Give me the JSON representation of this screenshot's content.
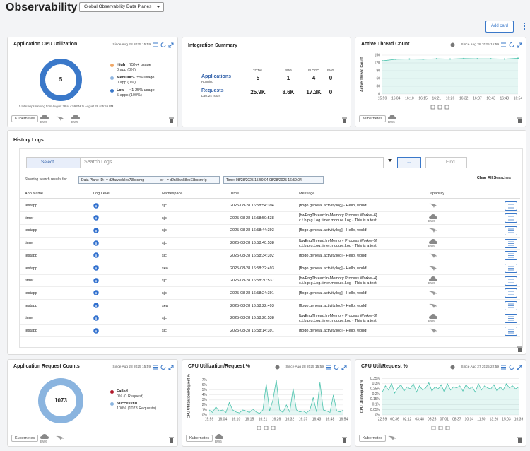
{
  "header": {
    "title": "Observability",
    "scope": "Global Observability Data Planes",
    "add_card": "Add card"
  },
  "cpu_card": {
    "title": "Application CPU Utilization",
    "since": "Since Aug 28 2025 15:59",
    "chart": {
      "type": "pie",
      "center": 5,
      "values": [
        0,
        0,
        5
      ],
      "colors": [
        "#f0a868",
        "#8fb5e0",
        "#3a78c9"
      ],
      "legend": [
        {
          "name": "High",
          "range": "75%+ usage",
          "detail": "0 app (0%)"
        },
        {
          "name": "Medium",
          "range": "25-75% usage",
          "detail": "0 app (0%)"
        },
        {
          "name": "Low",
          "range": "~1-25% usage",
          "detail": "5 apps (100%)"
        }
      ]
    },
    "note": "5 total apps running from August 28 at 4:59 PM to August 28 at 5:59 PM",
    "tag": "Kubernetes",
    "capabilities": [
      "BW6",
      "BW5"
    ],
    "flogo": true
  },
  "summary": {
    "title": "Integration Summary",
    "columns": [
      "TOTAL",
      "BW6",
      "FLOGO",
      "BW5"
    ],
    "rows": [
      {
        "label": "Applications",
        "sub": "Running",
        "cells": [
          5,
          1,
          4,
          0
        ]
      },
      {
        "label": "Requests",
        "sub": "Last 24 hours",
        "cells": [
          "25.9K",
          "8.6K",
          "17.3K",
          0
        ]
      }
    ]
  },
  "threads": {
    "title": "Active Thread Count",
    "since": "Since Aug 28 2025 15:59",
    "tag": "Kubernetes",
    "capabilities": [
      "BW6"
    ],
    "chart": {
      "type": "line",
      "y_label": "Active Thread Count",
      "categories": [
        "15:59",
        "16:04",
        "16:10",
        "16:15",
        "16:21",
        "16:26",
        "16:32",
        "16:37",
        "16:43",
        "16:48",
        "16:54"
      ],
      "values": [
        128,
        134,
        135,
        134,
        136,
        135,
        137,
        136,
        136,
        135,
        138
      ],
      "ylim": [
        0,
        150
      ],
      "yticks": [
        0,
        30,
        60,
        90,
        120,
        150
      ],
      "color": "#4cc3ad",
      "grid": true,
      "markers": true
    }
  },
  "logs": {
    "title": "History Logs",
    "select": "Select",
    "search_placeholder": "Search Logs",
    "more": "...",
    "find": "Find",
    "showing": "Showing search results for:",
    "dataplane_label": "Data Plane ID:",
    "dataplane_values": [
      "= d2fawsskilec73bcclmg",
      "= d2nk8vsk8ec73bccm4g"
    ],
    "or": "or",
    "time": "Time: 08/28/2025 15:59:04,08/28/2025 16:59:04",
    "clear": "Clear All Searches",
    "columns": [
      "App Name",
      "Log Level",
      "Namespace",
      "Time",
      "Message",
      "Capability"
    ],
    "rows": [
      {
        "app": "testapp",
        "namespace": "sjc",
        "time": "2025-08-28 16:58:54:394",
        "message": "[flogo.general.activity.log] - Hello, world!"
      },
      {
        "app": "timer",
        "namespace": "sjc",
        "time": "2025-08-28 16:58:50:538",
        "message": "[bwEngThread:In-Memory Process Worker-6]\nc.t.b.p.g.Log.timer.module.Log - This is a test.",
        "capability": "BW6"
      },
      {
        "app": "testapp",
        "namespace": "sjc",
        "time": "2025-08-28 16:58:44:393",
        "message": "[flogo.general.activity.log] - Hello, world!"
      },
      {
        "app": "timer",
        "namespace": "sjc",
        "time": "2025-08-28 16:58:40:538",
        "message": "[bwEngThread:In-Memory Process Worker-5]\nc.t.b.p.g.Log.timer.module.Log - This is a test.",
        "capability": "BW6"
      },
      {
        "app": "testapp",
        "namespace": "sjc",
        "time": "2025-08-28 16:58:34:392",
        "message": "[flogo.general.activity.log] - Hello, world!"
      },
      {
        "app": "testapp",
        "namespace": "sea",
        "time": "2025-08-28 16:58:32:493",
        "message": "[flogo.general.activity.log] - Hello, world!"
      },
      {
        "app": "timer",
        "namespace": "sjc",
        "time": "2025-08-28 16:58:30:537",
        "message": "[bwEngThread:In-Memory Process Worker-4]\nc.t.b.p.g.Log.timer.module.Log - This is a test.",
        "capability": "BW6"
      },
      {
        "app": "testapp",
        "namespace": "sjc",
        "time": "2025-08-28 16:58:24:391",
        "message": "[flogo.general.activity.log] - Hello, world!"
      },
      {
        "app": "testapp",
        "namespace": "sea",
        "time": "2025-08-28 16:58:22:493",
        "message": "[flogo.general.activity.log] - Hello, world!"
      },
      {
        "app": "timer",
        "namespace": "sjc",
        "time": "2025-08-28 16:58:20:538",
        "message": "[bwEngThread:In-Memory Process Worker-3]\nc.t.b.p.g.Log.timer.module.Log - This is a test.",
        "capability": "BW6"
      },
      {
        "app": "testapp",
        "namespace": "sjc",
        "time": "2025-08-28 16:58:14:391",
        "message": "[flogo.general.activity.log] - Hello, world!"
      }
    ]
  },
  "requests": {
    "title": "Application Request Counts",
    "since": "Since Aug 28 2025 15:59",
    "tag": "Kubernetes",
    "capabilities": [
      "BW6"
    ],
    "flogo": true,
    "chart": {
      "type": "pie",
      "center": 1073,
      "values": [
        0,
        1073
      ],
      "colors": [
        "#b0182a",
        "#8ab4df"
      ],
      "legend": [
        {
          "name": "Failed",
          "detail": "0% (0 Request)"
        },
        {
          "name": "Successful",
          "detail": "100% (1073 Requests)"
        }
      ]
    }
  },
  "cpu_request": {
    "title": "CPU Utilization/Request %",
    "since": "Since Aug 28 2025 15:59",
    "tag": "Kubernetes",
    "capabilities": [
      "BW6"
    ],
    "chart": {
      "type": "line",
      "y_label": "CPU Utilization/Request %",
      "categories": [
        "15:59",
        null,
        null,
        null,
        "16:04",
        null,
        null,
        null,
        "16:10",
        null,
        null,
        null,
        "16:15",
        null,
        null,
        null,
        "16:21",
        null,
        null,
        null,
        "16:26",
        null,
        null,
        null,
        "16:32",
        null,
        null,
        null,
        "16:37",
        null,
        null,
        null,
        "16:43",
        null,
        null,
        null,
        "16:48",
        null,
        null,
        null,
        "16:54"
      ],
      "values": [
        1,
        0.5,
        1.6,
        0.8,
        1,
        0.5,
        2.5,
        1,
        0.6,
        0.4,
        1,
        0.8,
        0.5,
        1.2,
        0.6,
        0.3,
        1,
        6.2,
        0.8,
        3,
        7,
        1,
        0.5,
        2,
        0.6,
        5.3,
        1,
        0.6,
        0.8,
        0.4,
        1,
        3.5,
        0.6,
        6.5,
        1,
        0.8,
        0.5,
        4,
        0.8,
        0.6,
        1
      ],
      "ylim": [
        0,
        7.5
      ],
      "yticks": [
        {
          "value": 0,
          "label": "0%"
        },
        {
          "value": 1,
          "label": "1%"
        },
        {
          "value": 2,
          "label": "2%"
        },
        {
          "value": 3,
          "label": "3%"
        },
        {
          "value": 4,
          "label": "4%"
        },
        {
          "value": 5,
          "label": "5%"
        },
        {
          "value": 6,
          "label": "6%"
        },
        {
          "value": 7,
          "label": "7%"
        }
      ],
      "color": "#4cc3ad",
      "grid": true
    }
  },
  "cpu_util": {
    "title": "CPU Util/Request %",
    "since": "Since Aug 27 2025 22:59",
    "tag": "Kubernetes",
    "flogo": true,
    "chart": {
      "type": "line",
      "y_label": "CPU Util/Request %",
      "categories": [
        "22:59",
        null,
        null,
        null,
        "00:36",
        null,
        null,
        null,
        "02:12",
        null,
        null,
        null,
        "03:48",
        null,
        null,
        null,
        "05:25",
        null,
        null,
        null,
        "07:01",
        null,
        null,
        null,
        "08:37",
        null,
        null,
        null,
        "10:14",
        null,
        null,
        null,
        "11:50",
        null,
        null,
        null,
        "13:26",
        null,
        null,
        null,
        "15:03",
        null,
        null,
        null,
        "16:39"
      ],
      "values": [
        0.22,
        0.28,
        0.24,
        0.3,
        0.21,
        0.26,
        0.29,
        0.23,
        0.27,
        0.25,
        0.3,
        0.22,
        0.28,
        0.24,
        0.26,
        0.31,
        0.23,
        0.27,
        0.25,
        0.29,
        0.22,
        0.3,
        0.24,
        0.27,
        0.26,
        0.28,
        0.23,
        0.29,
        0.25,
        0.27,
        0.22,
        0.3,
        0.24,
        0.28,
        0.26,
        0.25,
        0.29,
        0.23,
        0.27,
        0.24,
        0.3,
        0.26,
        0.28,
        0.25,
        0.27
      ],
      "ylim": [
        0,
        0.36
      ],
      "yticks": [
        {
          "value": 0,
          "label": "0%"
        },
        {
          "value": 0.05,
          "label": "0.05%"
        },
        {
          "value": 0.1,
          "label": "0.1%"
        },
        {
          "value": 0.15,
          "label": "0.15%"
        },
        {
          "value": 0.2,
          "label": "0.2%"
        },
        {
          "value": 0.25,
          "label": "0.25%"
        },
        {
          "value": 0.3,
          "label": "0.3%"
        },
        {
          "value": 0.35,
          "label": "0.35%"
        }
      ],
      "color": "#4cc3ad",
      "grid": true
    }
  }
}
